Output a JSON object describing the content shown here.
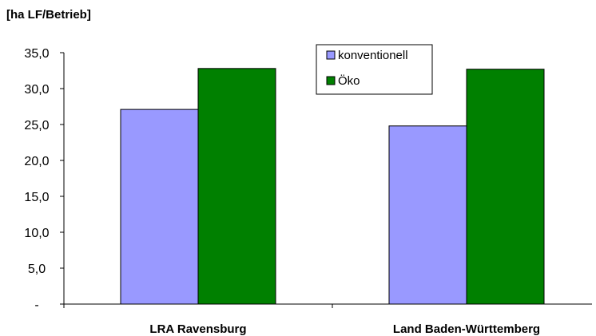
{
  "chart_data": {
    "type": "bar",
    "ylabel": "[ha LF/Betrieb]",
    "categories": [
      "LRA Ravensburg",
      "Land Baden-Württemberg"
    ],
    "series": [
      {
        "name": "konventionell",
        "color": "#9999ff",
        "values": [
          27.1,
          24.8
        ]
      },
      {
        "name": "Öko",
        "color": "#008000",
        "values": [
          32.8,
          32.7
        ]
      }
    ],
    "ylim": [
      0,
      35
    ],
    "yticks": [
      0,
      5,
      10,
      15,
      20,
      25,
      30,
      35
    ],
    "ytick_labels": [
      "-",
      "5,0",
      "10,0",
      "15,0",
      "20,0",
      "25,0",
      "30,0",
      "35,0"
    ],
    "grid": false,
    "legend": "top-right"
  }
}
